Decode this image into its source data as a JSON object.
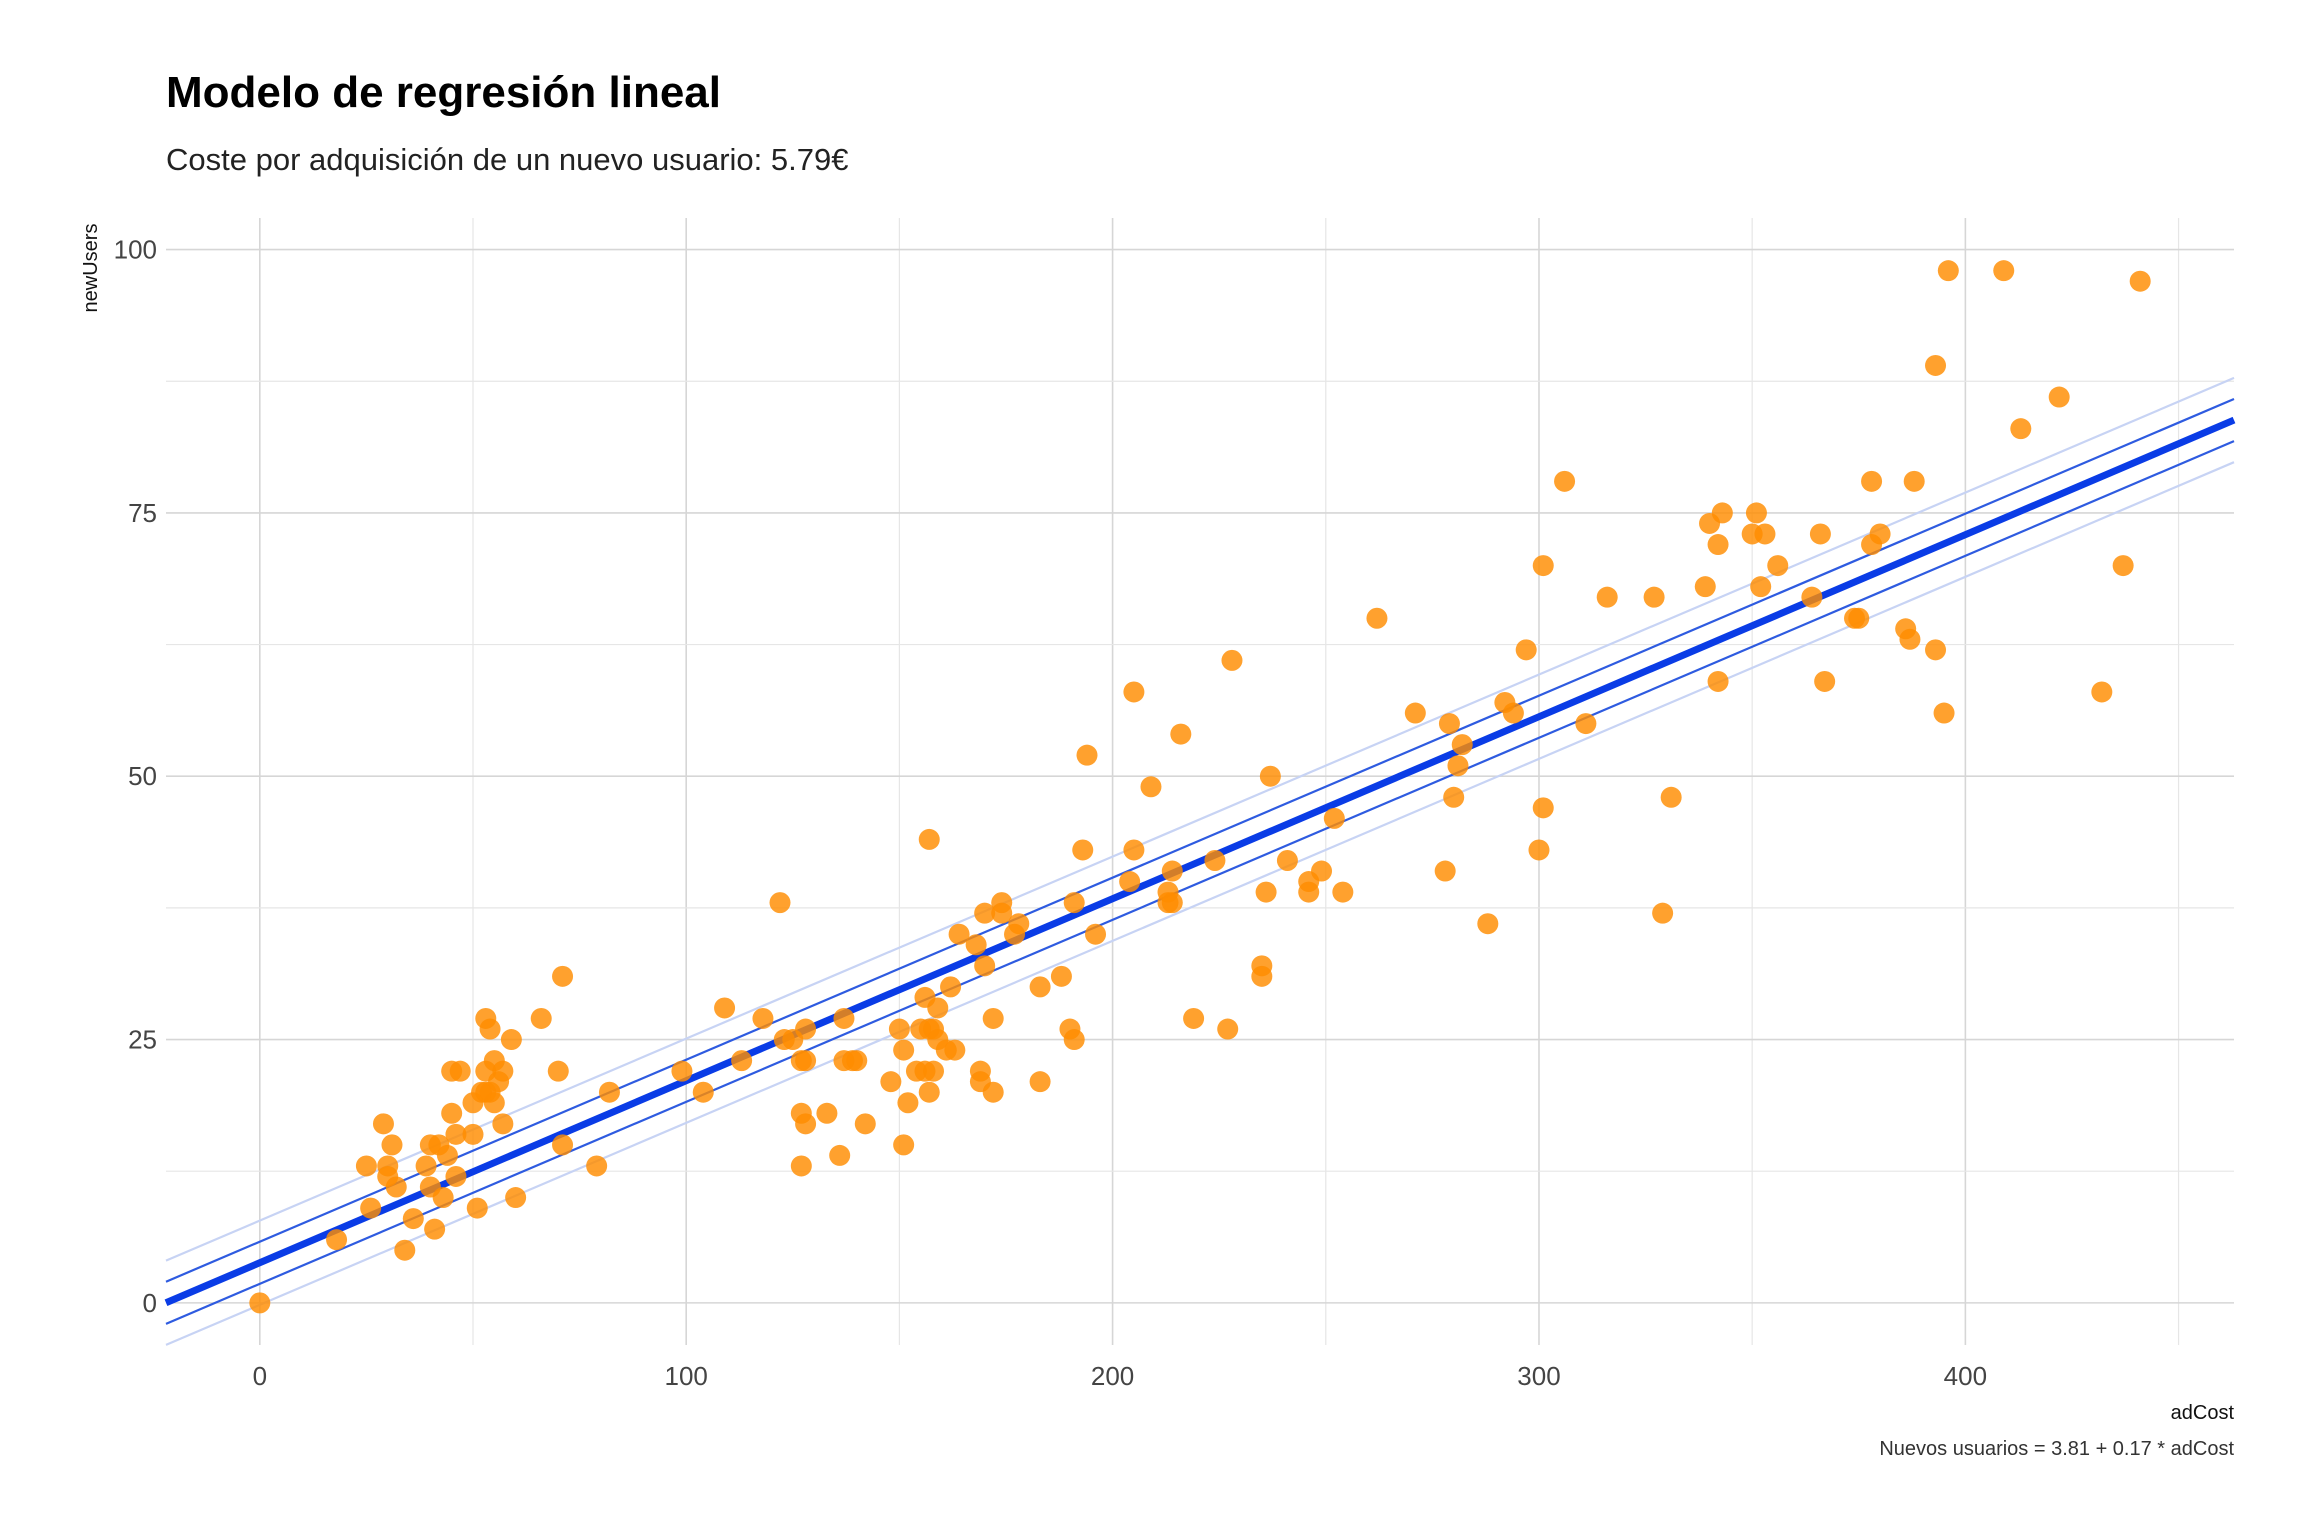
{
  "chart_data": {
    "type": "scatter",
    "title": "Modelo de regresión lineal",
    "subtitle": "Coste por adquisición de un nuevo usuario: 5.79€",
    "caption": "Nuevos usuarios = 3.81 + 0.17 * adCost",
    "xlabel": "adCost",
    "ylabel": "newUsers",
    "xlim": [
      -22,
      463
    ],
    "ylim": [
      -4,
      103
    ],
    "x_ticks": [
      0,
      100,
      200,
      300,
      400
    ],
    "y_ticks": [
      0,
      25,
      50,
      75,
      100
    ],
    "grid": true,
    "point_color": "#FF8C00",
    "fit_color": "#0A3CE6",
    "band_color": "#2E5BE0",
    "band_outer_color": "#C7D3F4",
    "regression": {
      "intercept": 3.81,
      "slope": 0.1728
    },
    "bands": {
      "inner_offset": 2.0,
      "outer_offset": 4.0
    },
    "points": [
      [
        0,
        0
      ],
      [
        18,
        6
      ],
      [
        25,
        13
      ],
      [
        26,
        9
      ],
      [
        29,
        17
      ],
      [
        30,
        12
      ],
      [
        30,
        13
      ],
      [
        31,
        15
      ],
      [
        32,
        11
      ],
      [
        34,
        5
      ],
      [
        36,
        8
      ],
      [
        39,
        13
      ],
      [
        40,
        11
      ],
      [
        40,
        15
      ],
      [
        41,
        7
      ],
      [
        42,
        15
      ],
      [
        43,
        10
      ],
      [
        44,
        14
      ],
      [
        45,
        18
      ],
      [
        45,
        22
      ],
      [
        46,
        16
      ],
      [
        46,
        12
      ],
      [
        47,
        22
      ],
      [
        50,
        19
      ],
      [
        50,
        16
      ],
      [
        51,
        9
      ],
      [
        52,
        20
      ],
      [
        53,
        20
      ],
      [
        53,
        27
      ],
      [
        53,
        22
      ],
      [
        54,
        26
      ],
      [
        54,
        20
      ],
      [
        55,
        19
      ],
      [
        55,
        23
      ],
      [
        56,
        21
      ],
      [
        57,
        22
      ],
      [
        57,
        17
      ],
      [
        59,
        25
      ],
      [
        60,
        10
      ],
      [
        66,
        27
      ],
      [
        70,
        22
      ],
      [
        71,
        15
      ],
      [
        71,
        31
      ],
      [
        79,
        13
      ],
      [
        82,
        20
      ],
      [
        99,
        22
      ],
      [
        104,
        20
      ],
      [
        109,
        28
      ],
      [
        113,
        23
      ],
      [
        118,
        27
      ],
      [
        122,
        38
      ],
      [
        123,
        25
      ],
      [
        125,
        25
      ],
      [
        127,
        23
      ],
      [
        127,
        18
      ],
      [
        127,
        13
      ],
      [
        128,
        17
      ],
      [
        128,
        23
      ],
      [
        128,
        26
      ],
      [
        133,
        18
      ],
      [
        136,
        14
      ],
      [
        137,
        27
      ],
      [
        137,
        23
      ],
      [
        139,
        23
      ],
      [
        140,
        23
      ],
      [
        142,
        17
      ],
      [
        148,
        21
      ],
      [
        150,
        26
      ],
      [
        151,
        15
      ],
      [
        151,
        24
      ],
      [
        152,
        19
      ],
      [
        154,
        22
      ],
      [
        155,
        26
      ],
      [
        156,
        29
      ],
      [
        156,
        22
      ],
      [
        157,
        26
      ],
      [
        157,
        20
      ],
      [
        157,
        44
      ],
      [
        158,
        22
      ],
      [
        158,
        26
      ],
      [
        159,
        25
      ],
      [
        159,
        28
      ],
      [
        161,
        24
      ],
      [
        162,
        30
      ],
      [
        163,
        24
      ],
      [
        164,
        35
      ],
      [
        168,
        34
      ],
      [
        169,
        22
      ],
      [
        169,
        21
      ],
      [
        170,
        37
      ],
      [
        170,
        32
      ],
      [
        172,
        27
      ],
      [
        172,
        20
      ],
      [
        174,
        38
      ],
      [
        174,
        37
      ],
      [
        177,
        35
      ],
      [
        178,
        36
      ],
      [
        183,
        30
      ],
      [
        183,
        21
      ],
      [
        188,
        31
      ],
      [
        190,
        26
      ],
      [
        191,
        38
      ],
      [
        191,
        25
      ],
      [
        193,
        43
      ],
      [
        194,
        52
      ],
      [
        196,
        35
      ],
      [
        204,
        40
      ],
      [
        205,
        43
      ],
      [
        205,
        58
      ],
      [
        209,
        49
      ],
      [
        213,
        38
      ],
      [
        213,
        39
      ],
      [
        214,
        41
      ],
      [
        214,
        38
      ],
      [
        216,
        54
      ],
      [
        219,
        27
      ],
      [
        224,
        42
      ],
      [
        227,
        26
      ],
      [
        228,
        61
      ],
      [
        235,
        32
      ],
      [
        235,
        31
      ],
      [
        236,
        39
      ],
      [
        237,
        50
      ],
      [
        241,
        42
      ],
      [
        246,
        40
      ],
      [
        246,
        39
      ],
      [
        249,
        41
      ],
      [
        252,
        46
      ],
      [
        254,
        39
      ],
      [
        262,
        65
      ],
      [
        271,
        56
      ],
      [
        278,
        41
      ],
      [
        279,
        55
      ],
      [
        280,
        48
      ],
      [
        281,
        51
      ],
      [
        282,
        53
      ],
      [
        288,
        36
      ],
      [
        292,
        57
      ],
      [
        294,
        56
      ],
      [
        297,
        62
      ],
      [
        300,
        43
      ],
      [
        301,
        47
      ],
      [
        301,
        70
      ],
      [
        306,
        78
      ],
      [
        311,
        55
      ],
      [
        316,
        67
      ],
      [
        327,
        67
      ],
      [
        329,
        37
      ],
      [
        331,
        48
      ],
      [
        339,
        68
      ],
      [
        340,
        74
      ],
      [
        342,
        72
      ],
      [
        342,
        59
      ],
      [
        343,
        75
      ],
      [
        350,
        73
      ],
      [
        351,
        75
      ],
      [
        352,
        68
      ],
      [
        353,
        73
      ],
      [
        356,
        70
      ],
      [
        364,
        67
      ],
      [
        366,
        73
      ],
      [
        367,
        59
      ],
      [
        374,
        65
      ],
      [
        375,
        65
      ],
      [
        378,
        72
      ],
      [
        378,
        78
      ],
      [
        380,
        73
      ],
      [
        386,
        64
      ],
      [
        387,
        63
      ],
      [
        388,
        78
      ],
      [
        393,
        62
      ],
      [
        393,
        89
      ],
      [
        395,
        56
      ],
      [
        396,
        98
      ],
      [
        409,
        98
      ],
      [
        413,
        83
      ],
      [
        422,
        86
      ],
      [
        432,
        58
      ],
      [
        437,
        70
      ],
      [
        441,
        97
      ]
    ]
  }
}
